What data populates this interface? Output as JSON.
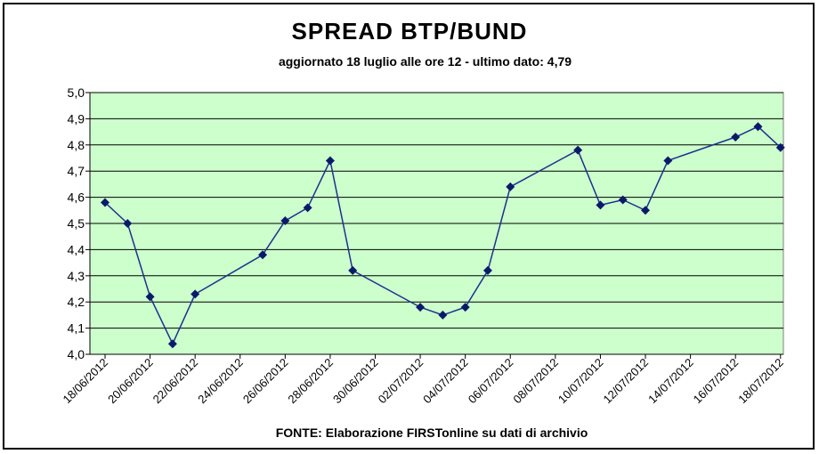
{
  "chart_data": {
    "type": "line",
    "title": "SPREAD BTP/BUND",
    "subtitle": "aggiornato 18 luglio alle ore 12 - ultimo dato: 4,79",
    "source": "FONTE: Elaborazione FIRSTonline su dati di archivio",
    "xlabel": "",
    "ylabel": "",
    "ylim": [
      4.0,
      5.0
    ],
    "y_ticks": [
      "4,0",
      "4,1",
      "4,2",
      "4,3",
      "4,4",
      "4,5",
      "4,6",
      "4,7",
      "4,8",
      "4,9",
      "5,0"
    ],
    "x_ticks": [
      "18/06/2012",
      "20/06/2012",
      "22/06/2012",
      "24/06/2012",
      "26/06/2012",
      "28/06/2012",
      "30/06/2012",
      "02/07/2012",
      "04/07/2012",
      "06/07/2012",
      "08/07/2012",
      "10/07/2012",
      "12/07/2012",
      "14/07/2012",
      "16/07/2012",
      "18/07/2012"
    ],
    "grid": true,
    "colors": {
      "plot_bg": "#ccffcc",
      "line": "#1f2f8f",
      "marker": "#0a1a6a",
      "grid": "#000000"
    },
    "series": [
      {
        "x": [
          "18/06/2012",
          "19/06/2012",
          "20/06/2012",
          "21/06/2012",
          "22/06/2012",
          "25/06/2012",
          "26/06/2012",
          "27/06/2012",
          "28/06/2012",
          "29/06/2012",
          "02/07/2012",
          "03/07/2012",
          "04/07/2012",
          "05/07/2012",
          "06/07/2012",
          "09/07/2012",
          "10/07/2012",
          "11/07/2012",
          "12/07/2012",
          "13/07/2012",
          "16/07/2012",
          "17/07/2012",
          "18/07/2012"
        ],
        "values": [
          4.58,
          4.5,
          4.22,
          4.04,
          4.23,
          4.38,
          4.51,
          4.56,
          4.74,
          4.32,
          4.18,
          4.15,
          4.18,
          4.32,
          4.64,
          4.78,
          4.57,
          4.59,
          4.55,
          4.74,
          4.83,
          4.87,
          4.79
        ]
      }
    ]
  }
}
